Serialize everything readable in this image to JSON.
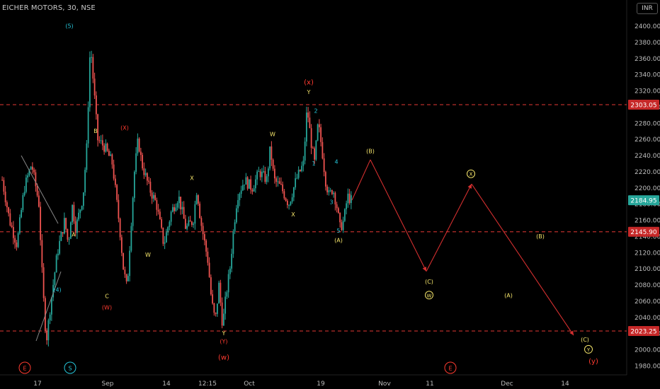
{
  "header": {
    "title": "EICHER MOTORS, 30, NSE",
    "currency": "INR"
  },
  "colors": {
    "background": "#000000",
    "up_candle": "#26a69a",
    "down_candle": "#ef5350",
    "level_line": "#e53935",
    "projection": "#d32f2f",
    "label_yellow": "#f5e56b",
    "label_red": "#ff3b30",
    "label_teal": "#26c6da"
  },
  "chart_data": {
    "type": "candlestick",
    "symbol": "EICHER MOTORS",
    "interval": "30",
    "exchange": "NSE",
    "ylim": [
      1970,
      2420
    ],
    "y_ticks": [
      1980,
      2000,
      2020,
      2040,
      2060,
      2080,
      2100,
      2120,
      2140,
      2160,
      2180,
      2200,
      2220,
      2240,
      2260,
      2280,
      2300,
      2320,
      2340,
      2360,
      2380,
      2400
    ],
    "x_ticks": [
      "17",
      "Sep",
      "14",
      "12:15",
      "Oct",
      "19",
      "Nov",
      "11",
      "Dec",
      "14"
    ],
    "horizontal_levels": [
      2303.05,
      2145.9,
      2023.25
    ],
    "last_price": 2184.95,
    "price_path": [
      [
        0,
        2210
      ],
      [
        2,
        2160
      ],
      [
        4,
        2130
      ],
      [
        6,
        2200
      ],
      [
        8,
        2230
      ],
      [
        10,
        2180
      ],
      [
        11,
        2080
      ],
      [
        12,
        2010
      ],
      [
        13,
        2050
      ],
      [
        15,
        2120
      ],
      [
        17,
        2160
      ],
      [
        18,
        2130
      ],
      [
        19,
        2180
      ],
      [
        20,
        2150
      ],
      [
        22,
        2190
      ],
      [
        23,
        2250
      ],
      [
        24,
        2380
      ],
      [
        25,
        2320
      ],
      [
        26,
        2260
      ],
      [
        28,
        2250
      ],
      [
        30,
        2230
      ],
      [
        32,
        2150
      ],
      [
        33,
        2100
      ],
      [
        34,
        2075
      ],
      [
        35,
        2150
      ],
      [
        36,
        2220
      ],
      [
        37,
        2260
      ],
      [
        38,
        2230
      ],
      [
        40,
        2200
      ],
      [
        42,
        2180
      ],
      [
        44,
        2130
      ],
      [
        46,
        2170
      ],
      [
        48,
        2190
      ],
      [
        50,
        2150
      ],
      [
        52,
        2160
      ],
      [
        53,
        2200
      ],
      [
        54,
        2160
      ],
      [
        56,
        2110
      ],
      [
        57,
        2060
      ],
      [
        58,
        2035
      ],
      [
        59,
        2080
      ],
      [
        60,
        2030
      ],
      [
        61,
        2070
      ],
      [
        62,
        2100
      ],
      [
        63,
        2150
      ],
      [
        64,
        2190
      ],
      [
        66,
        2210
      ],
      [
        68,
        2200
      ],
      [
        70,
        2220
      ],
      [
        72,
        2210
      ],
      [
        73,
        2250
      ],
      [
        74,
        2210
      ],
      [
        76,
        2200
      ],
      [
        78,
        2180
      ],
      [
        80,
        2210
      ],
      [
        82,
        2230
      ],
      [
        83,
        2300
      ],
      [
        84,
        2260
      ],
      [
        85,
        2230
      ],
      [
        86,
        2280
      ],
      [
        87,
        2250
      ],
      [
        88,
        2210
      ],
      [
        89,
        2190
      ],
      [
        90,
        2200
      ],
      [
        91,
        2180
      ],
      [
        92,
        2150
      ],
      [
        93,
        2160
      ],
      [
        94,
        2190
      ],
      [
        95,
        2185
      ]
    ],
    "projection_path": [
      [
        "Oct 24",
        2185
      ],
      [
        "Oct 28",
        2235
      ],
      [
        "Nov 9",
        2097
      ],
      [
        "Nov 19",
        2205
      ],
      [
        "Dec 18",
        2018
      ]
    ],
    "annotations": [
      {
        "text": "(5)",
        "x": "Aug 18",
        "y": 2398,
        "color": "teal"
      },
      {
        "text": "(4)",
        "x": "Aug 17",
        "y": 2072,
        "color": "teal"
      },
      {
        "text": "B",
        "x": "Aug 25",
        "y": 2268,
        "color": "yellow"
      },
      {
        "text": "A",
        "x": "Aug 21",
        "y": 2140,
        "color": "yellow"
      },
      {
        "text": "C",
        "x": "Aug 31",
        "y": 2064,
        "color": "yellow"
      },
      {
        "text": "(W)",
        "x": "Aug 31",
        "y": 2050,
        "color": "red"
      },
      {
        "text": "(X)",
        "x": "Sep 2",
        "y": 2272,
        "color": "red"
      },
      {
        "text": "W",
        "x": "Sep 6",
        "y": 2115,
        "color": "yellow"
      },
      {
        "text": "X",
        "x": "Sep 13",
        "y": 2210,
        "color": "yellow"
      },
      {
        "text": "Y",
        "x": "Sep 24",
        "y": 2018,
        "color": "yellow"
      },
      {
        "text": "(Y)",
        "x": "Sep 24",
        "y": 2008,
        "color": "red"
      },
      {
        "text": "(w)",
        "x": "Sep 24",
        "y": 1988,
        "color": "red"
      },
      {
        "text": "W",
        "x": "Oct 5",
        "y": 2264,
        "color": "yellow"
      },
      {
        "text": "X",
        "x": "Oct 11",
        "y": 2165,
        "color": "yellow"
      },
      {
        "text": "(x)",
        "x": "Oct 16",
        "y": 2328,
        "color": "red"
      },
      {
        "text": "Y",
        "x": "Oct 16",
        "y": 2316,
        "color": "yellow"
      },
      {
        "text": "2",
        "x": "Oct 17",
        "y": 2293,
        "color": "teal"
      },
      {
        "text": "1",
        "x": "Oct 17",
        "y": 2228,
        "color": "teal"
      },
      {
        "text": "4",
        "x": "Oct 20",
        "y": 2230,
        "color": "teal"
      },
      {
        "text": "3",
        "x": "Oct 19",
        "y": 2180,
        "color": "teal"
      },
      {
        "text": "5",
        "x": "Oct 20",
        "y": 2145,
        "color": "teal"
      },
      {
        "text": "(A)",
        "x": "Oct 20",
        "y": 2133,
        "color": "yellow"
      },
      {
        "text": "(B)",
        "x": "Oct 28",
        "y": 2243,
        "color": "yellow"
      },
      {
        "text": "(C)",
        "x": "Nov 9",
        "y": 2082,
        "color": "yellow"
      },
      {
        "text": "W",
        "x": "Nov 9",
        "y": 2065,
        "color": "yellow",
        "circled": true
      },
      {
        "text": "X",
        "x": "Nov 19",
        "y": 2215,
        "color": "yellow",
        "circled": true
      },
      {
        "text": "(B)",
        "x": "Nov 29",
        "y": 2138,
        "color": "yellow"
      },
      {
        "text": "(A)",
        "x": "Nov 26",
        "y": 2065,
        "color": "yellow"
      },
      {
        "text": "(C)",
        "x": "Dec 20",
        "y": 2010,
        "color": "yellow"
      },
      {
        "text": "Y",
        "x": "Dec 20",
        "y": 1998,
        "color": "yellow",
        "circled": true
      },
      {
        "text": "(y)",
        "x": "Dec 20",
        "y": 1983,
        "color": "red"
      }
    ],
    "event_badges": [
      {
        "text": "E",
        "color": "red"
      },
      {
        "text": "S",
        "color": "teal"
      },
      {
        "text": "E",
        "color": "red"
      }
    ]
  }
}
